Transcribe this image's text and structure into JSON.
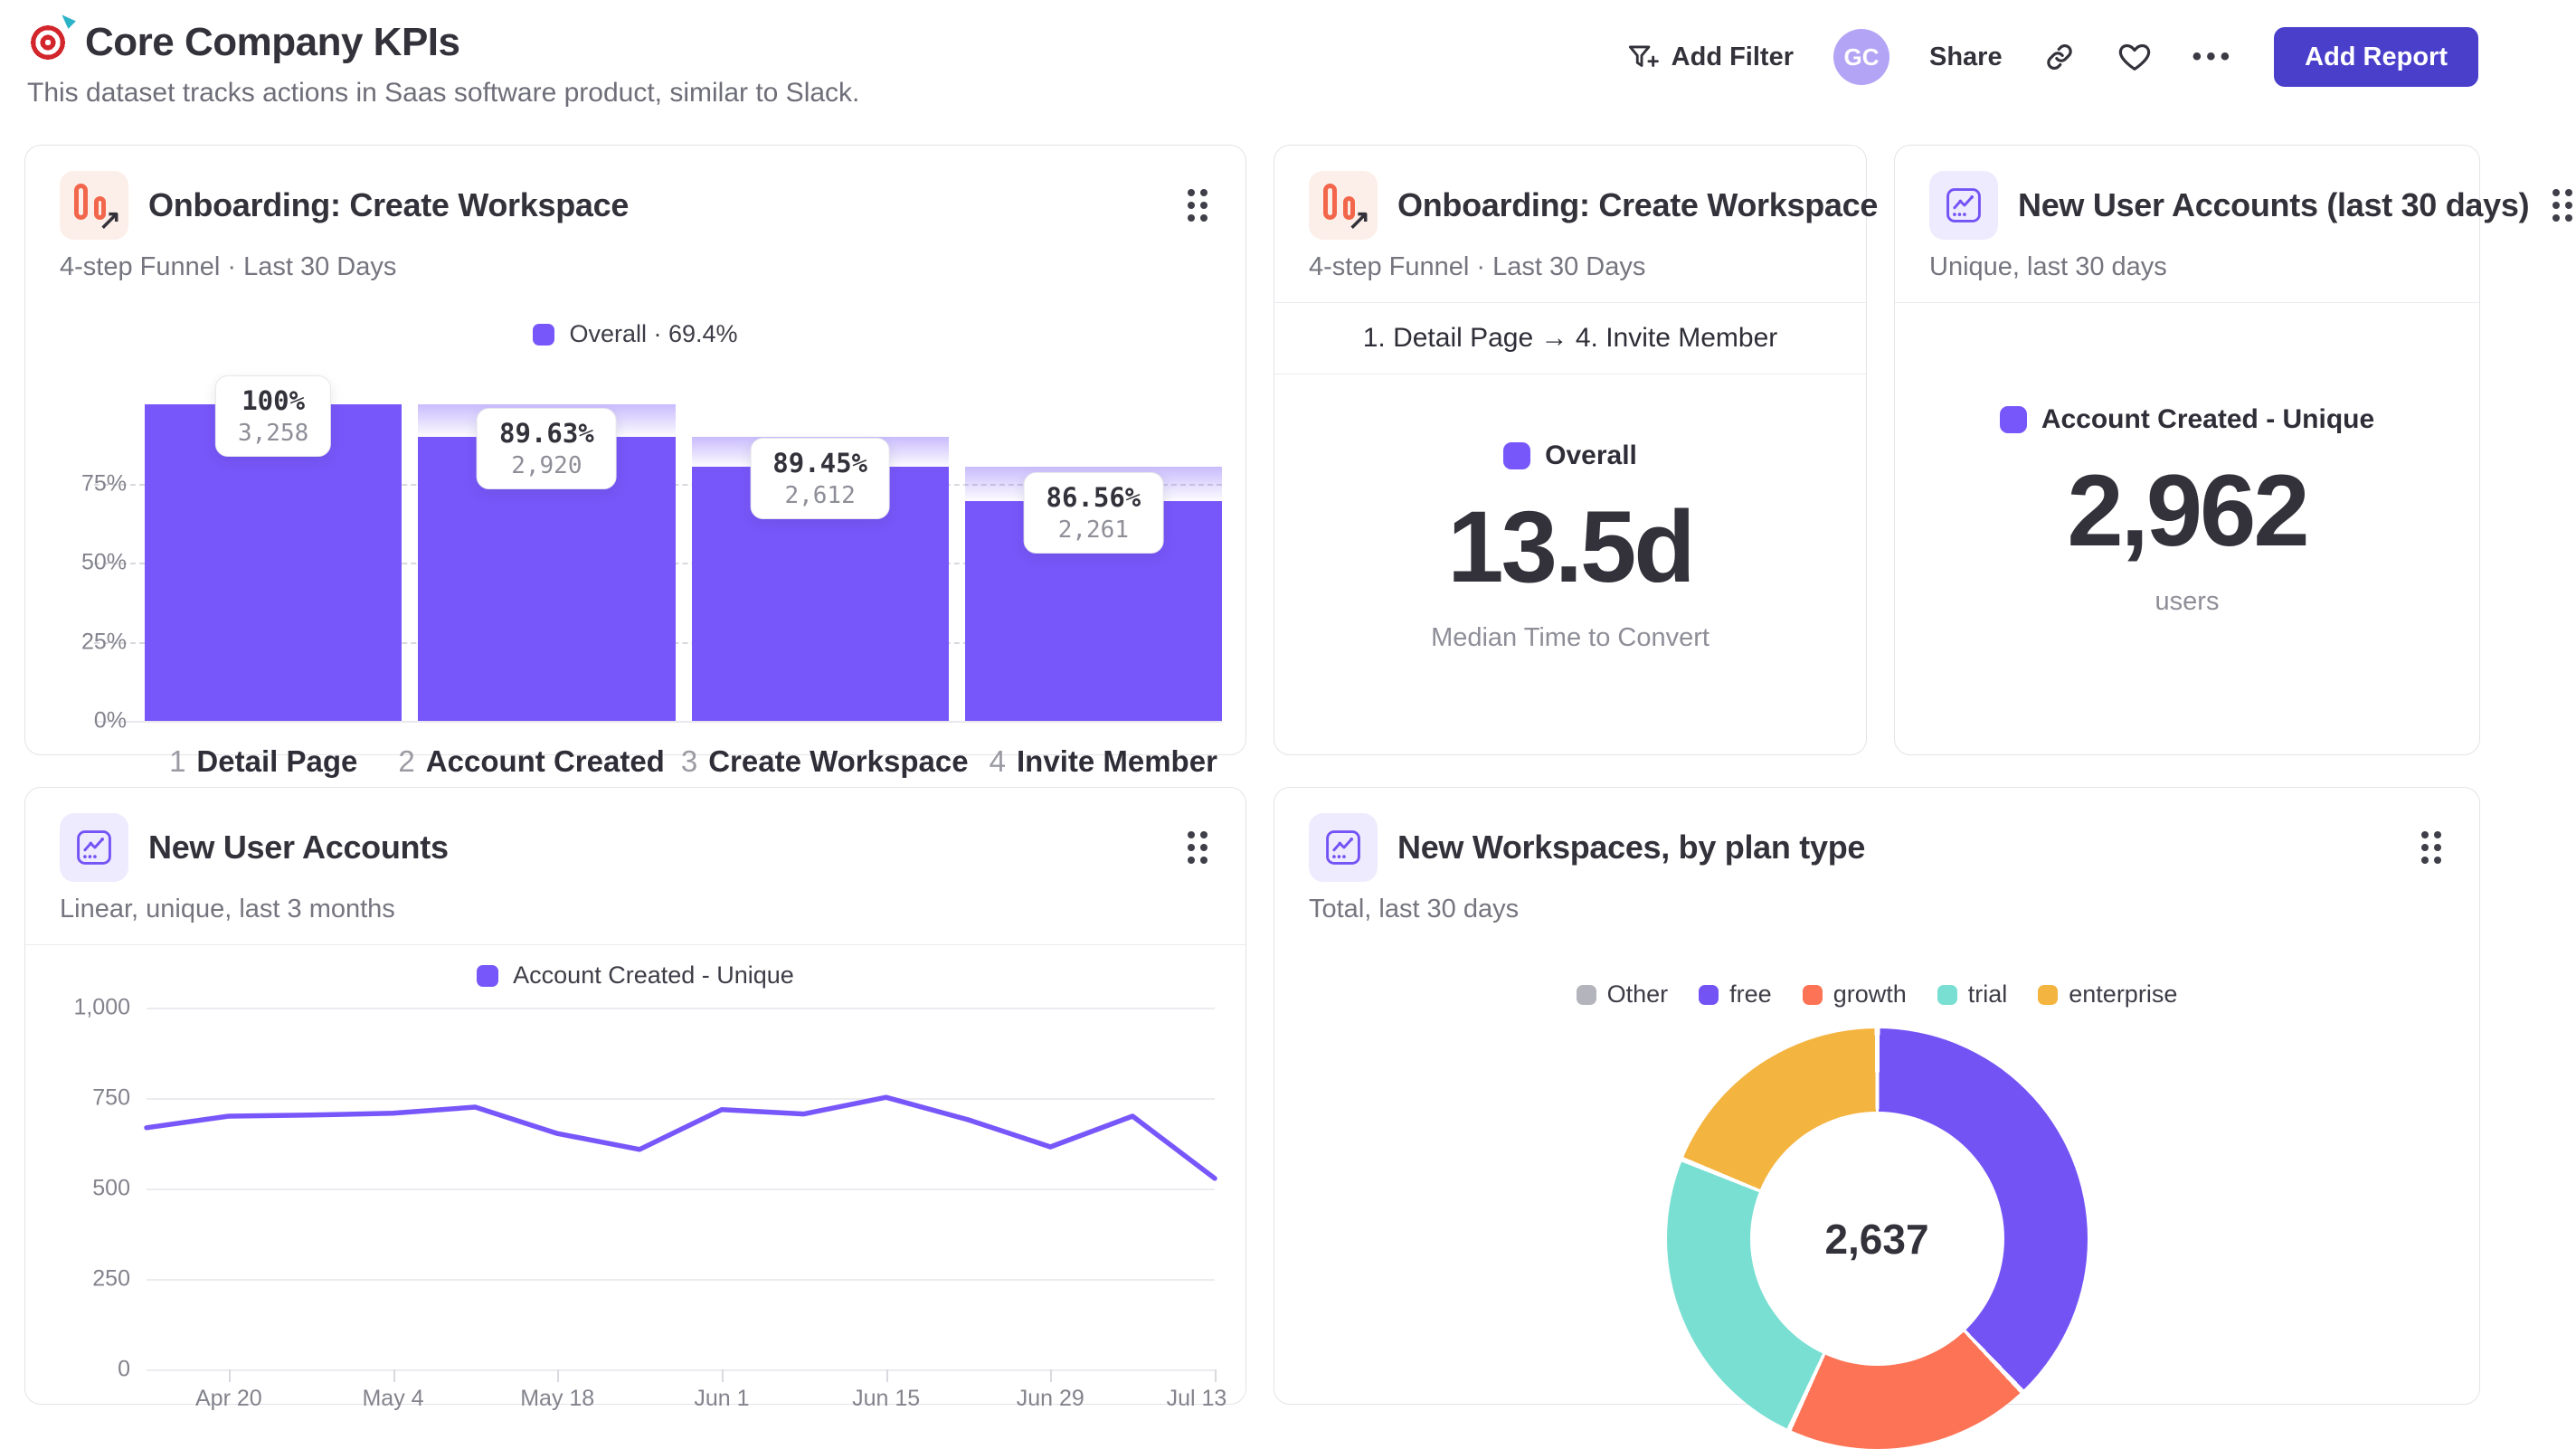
{
  "page": {
    "title": "Core Company KPIs",
    "subtitle": "This dataset tracks actions in Saas software product, similar to Slack.",
    "icon": "target-emoji"
  },
  "header_actions": {
    "add_filter": "Add Filter",
    "avatar_initials": "GC",
    "share": "Share",
    "more": "•••",
    "add_report": "Add Report"
  },
  "theme": {
    "accent_purple": "#7857FA",
    "add_report_bg": "#4A3FCB",
    "avatar_bg": "#B4A4F6",
    "grid_dash": "#D8D8DF"
  },
  "chart_data": [
    {
      "id": "onboarding-funnel",
      "type": "bar",
      "title": "Onboarding: Create Workspace",
      "subtitle": "4-step Funnel · Last 30 Days",
      "legend": "Overall · 69.4%",
      "bar_color": "#7857FA",
      "ylim": [
        0,
        100
      ],
      "yticks_pct": [
        0,
        25,
        50,
        75
      ],
      "categories": [
        "Detail Page",
        "Account Created",
        "Create Workspace",
        "Invite Member"
      ],
      "step_numbers": [
        "1",
        "2",
        "3",
        "4"
      ],
      "step_conversion_labels": [
        "100%",
        "89.63%",
        "89.45%",
        "86.56%"
      ],
      "counts": [
        "3,258",
        "2,920",
        "2,612",
        "2,261"
      ],
      "overall_pct_heights": [
        100,
        89.63,
        80.2,
        69.4
      ]
    },
    {
      "id": "median-time-to-convert",
      "type": "metric",
      "title": "Onboarding: Create Workspace",
      "subtitle": "4-step Funnel · Last 30 Days",
      "band": "1. Detail Page → 4. Invite Member",
      "legend": "Overall",
      "value": "13.5d",
      "caption": "Median Time to Convert"
    },
    {
      "id": "new-user-accounts-30d",
      "type": "metric",
      "title": "New User Accounts (last 30 days)",
      "subtitle": "Unique, last 30 days",
      "legend": "Account Created - Unique",
      "value": "2,962",
      "caption": "users"
    },
    {
      "id": "new-user-accounts-trend",
      "type": "line",
      "title": "New User Accounts",
      "subtitle": "Linear, unique, last 3 months",
      "legend": "Account Created - Unique",
      "line_color": "#7857FA",
      "ylim": [
        0,
        1000
      ],
      "yticks": [
        {
          "v": 0,
          "label": "0"
        },
        {
          "v": 250,
          "label": "250"
        },
        {
          "v": 500,
          "label": "500"
        },
        {
          "v": 750,
          "label": "750"
        },
        {
          "v": 1000,
          "label": "1,000"
        }
      ],
      "values": [
        668,
        700,
        703,
        708,
        725,
        652,
        608,
        718,
        706,
        752,
        690,
        615,
        700,
        528
      ],
      "xticks": [
        {
          "label": "Apr 20",
          "i": 1
        },
        {
          "label": "May 4",
          "i": 3
        },
        {
          "label": "May 18",
          "i": 5
        },
        {
          "label": "Jun 1",
          "i": 7
        },
        {
          "label": "Jun 15",
          "i": 9
        },
        {
          "label": "Jun 29",
          "i": 11
        },
        {
          "label": "Jul 13",
          "i": 13
        }
      ]
    },
    {
      "id": "new-workspaces-by-plan",
      "type": "pie",
      "title": "New Workspaces, by plan type",
      "subtitle": "Total, last 30 days",
      "total_label": "2,637",
      "slices": [
        {
          "label": "Other",
          "color": "#B4B4BC",
          "value": 0
        },
        {
          "label": "free",
          "color": "#7453F5",
          "value": 1000
        },
        {
          "label": "growth",
          "color": "#FC7355",
          "value": 500
        },
        {
          "label": "trial",
          "color": "#79DFD2",
          "value": 640
        },
        {
          "label": "enterprise",
          "color": "#F4B440",
          "value": 497
        }
      ]
    }
  ]
}
